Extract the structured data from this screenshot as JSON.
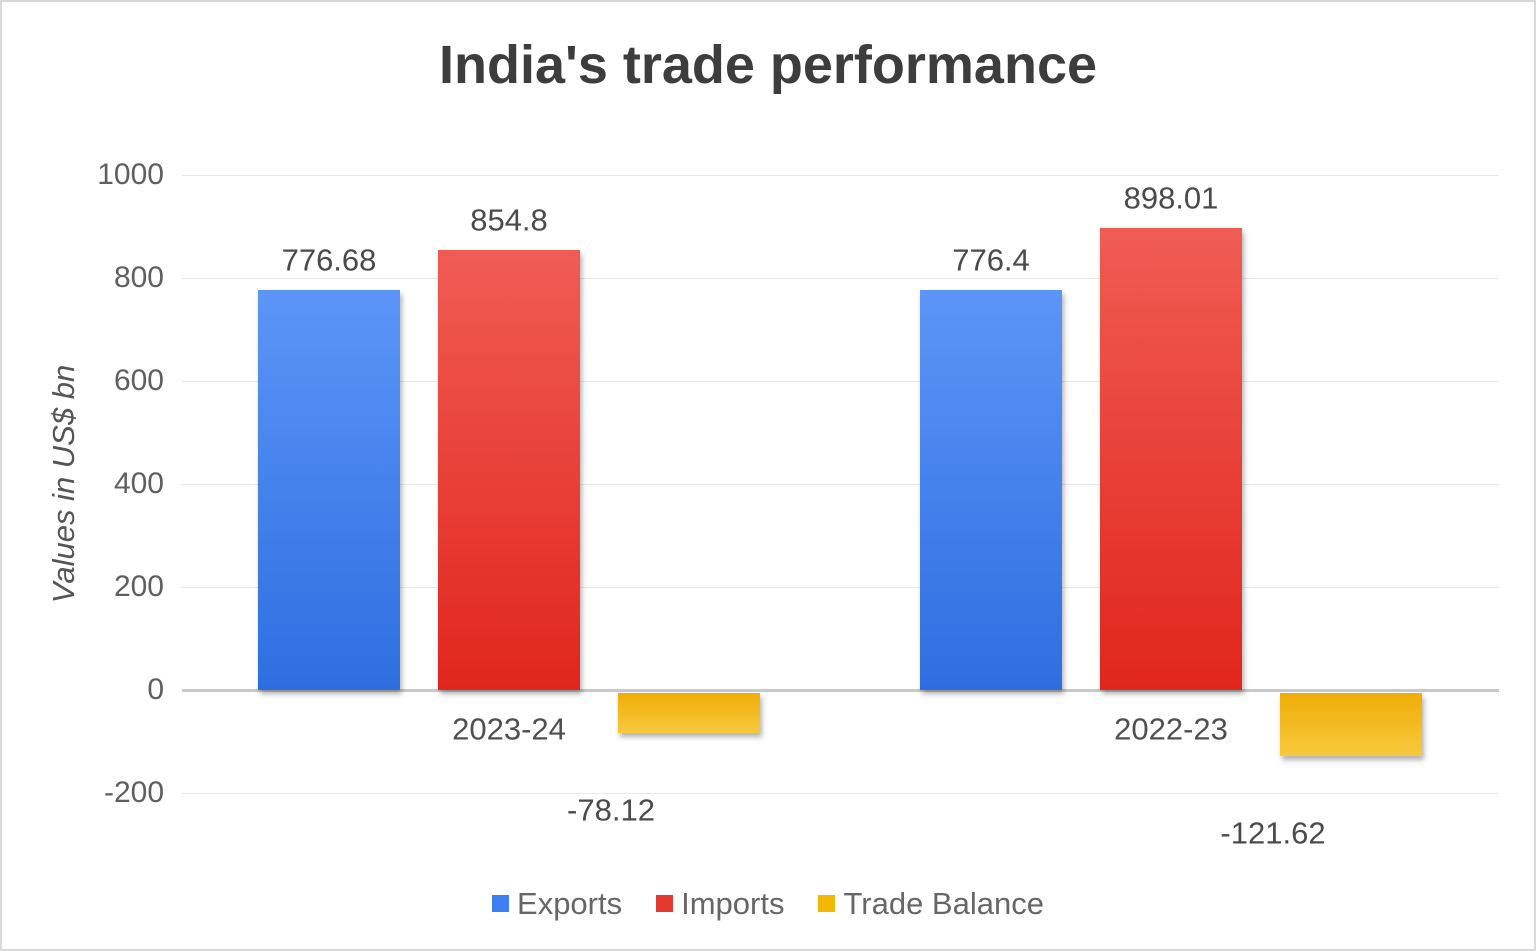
{
  "page": {
    "background": "#ffffff",
    "border_color": "#d9d9d9"
  },
  "chart_data": {
    "type": "bar",
    "title": "India's trade performance",
    "xlabel": "",
    "ylabel": "Values in US$ bn",
    "categories": [
      "2023-24",
      "2022-23"
    ],
    "series": [
      {
        "name": "Exports",
        "values": [
          776.68,
          776.4
        ],
        "color": "#3d7ef1",
        "gradient_top": "#5c95f7",
        "gradient_bottom": "#2e6ee0"
      },
      {
        "name": "Imports",
        "values": [
          854.8,
          898.01
        ],
        "color": "#e23a2e",
        "gradient_top": "#f05c54",
        "gradient_bottom": "#e0261c"
      },
      {
        "name": "Trade Balance",
        "values": [
          -78.12,
          -121.62
        ],
        "color": "#f2b705",
        "gradient_top": "#efad06",
        "gradient_bottom": "#f7c93f"
      }
    ],
    "ylim": [
      -200,
      1000
    ],
    "yticks": [
      1000,
      800,
      600,
      400,
      200,
      0,
      -200
    ],
    "grid": true,
    "legend_position": "bottom",
    "gridline_color": "#e9e9e9",
    "zero_line_color": "#c9c9c9"
  }
}
